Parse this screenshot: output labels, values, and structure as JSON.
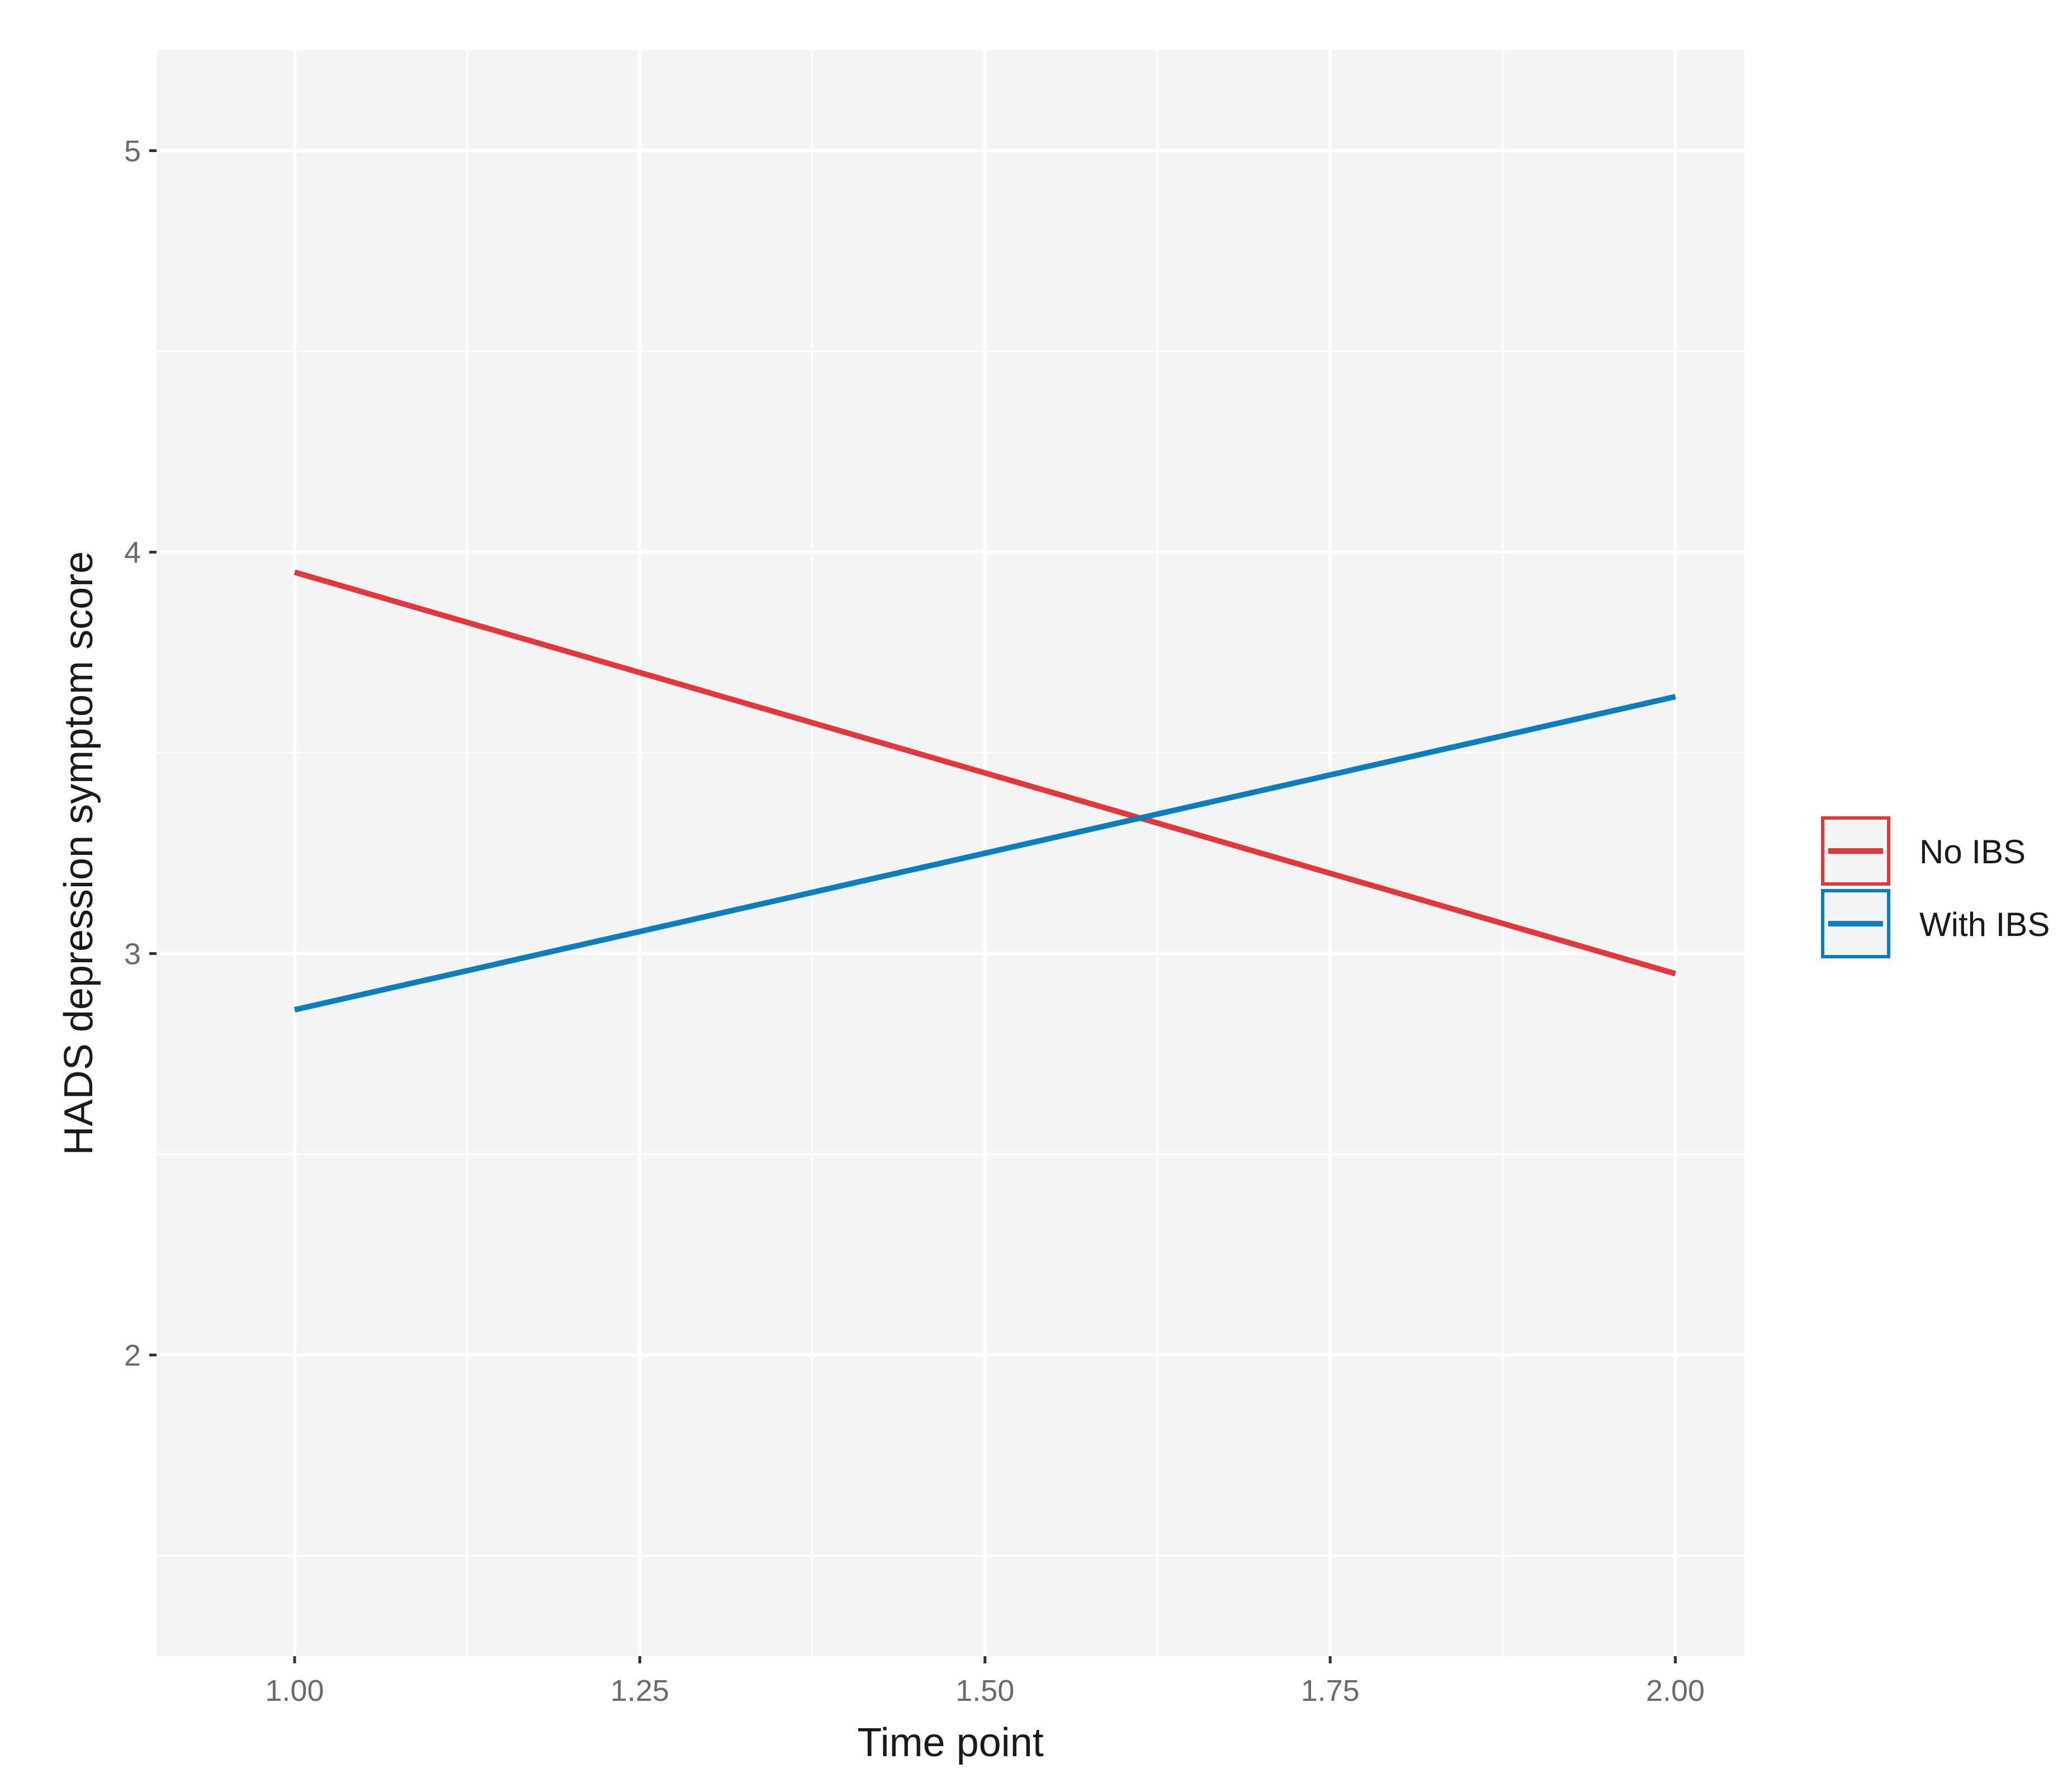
{
  "chart_data": {
    "type": "line",
    "xlabel": "Time point",
    "ylabel": "HADS depression symptom score",
    "xlim": [
      0.9,
      2.05
    ],
    "ylim": [
      1.25,
      5.25
    ],
    "x_ticks": [
      1.0,
      1.25,
      1.5,
      1.75,
      2.0
    ],
    "x_tick_labels": [
      "1.00",
      "1.25",
      "1.50",
      "1.75",
      "2.00"
    ],
    "y_ticks": [
      2,
      3,
      4,
      5
    ],
    "y_tick_labels": [
      "2",
      "3",
      "4",
      "5"
    ],
    "grid": true,
    "legend_position": "right",
    "background_color": "#f3f4f6",
    "series": [
      {
        "name": "No IBS",
        "color": "#e5373b",
        "x": [
          1.0,
          2.0
        ],
        "y": [
          3.95,
          2.95
        ]
      },
      {
        "name": "With IBS",
        "color": "#0b7fbd",
        "x": [
          1.0,
          2.0
        ],
        "y": [
          2.86,
          3.64
        ]
      }
    ]
  }
}
